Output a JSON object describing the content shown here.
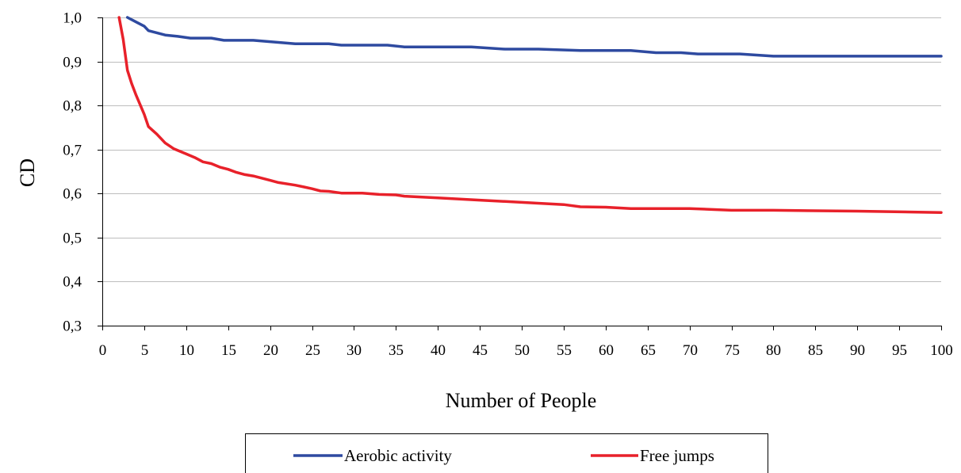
{
  "chart_data": {
    "type": "line",
    "title": "",
    "xlabel": "Number of People",
    "ylabel": "CD",
    "xlim": [
      0,
      100
    ],
    "ylim": [
      0.3,
      1.0
    ],
    "grid": {
      "horizontal": true,
      "vertical": false
    },
    "legend_position": "bottom",
    "x_ticks": [
      "0",
      "5",
      "10",
      "15",
      "20",
      "25",
      "30",
      "35",
      "40",
      "45",
      "50",
      "55",
      "60",
      "65",
      "70",
      "75",
      "80",
      "85",
      "90",
      "95",
      "100"
    ],
    "y_ticks": [
      "0,3",
      "0,4",
      "0,5",
      "0,6",
      "0,7",
      "0,8",
      "0,9",
      "1,0"
    ],
    "x_tick_values": [
      0,
      5,
      10,
      15,
      20,
      25,
      30,
      35,
      40,
      45,
      50,
      55,
      60,
      65,
      70,
      75,
      80,
      85,
      90,
      95,
      100
    ],
    "y_tick_values": [
      0.3,
      0.4,
      0.5,
      0.6,
      0.7,
      0.8,
      0.9,
      1.0
    ],
    "series": [
      {
        "name": "Aerobic activity",
        "color": "#2e4aa0",
        "points": [
          [
            3,
            1.0
          ],
          [
            4,
            0.99
          ],
          [
            5,
            0.98
          ],
          [
            5.5,
            0.97
          ],
          [
            6.5,
            0.965
          ],
          [
            7.5,
            0.96
          ],
          [
            9,
            0.957
          ],
          [
            10.5,
            0.953
          ],
          [
            13,
            0.953
          ],
          [
            14.5,
            0.948
          ],
          [
            18,
            0.948
          ],
          [
            20,
            0.945
          ],
          [
            23,
            0.94
          ],
          [
            27,
            0.94
          ],
          [
            28.5,
            0.937
          ],
          [
            34,
            0.937
          ],
          [
            36,
            0.933
          ],
          [
            44,
            0.933
          ],
          [
            48,
            0.928
          ],
          [
            52,
            0.928
          ],
          [
            57,
            0.925
          ],
          [
            63,
            0.925
          ],
          [
            66,
            0.92
          ],
          [
            69,
            0.92
          ],
          [
            71,
            0.917
          ],
          [
            76,
            0.917
          ],
          [
            80,
            0.912
          ],
          [
            100,
            0.912
          ]
        ]
      },
      {
        "name": "Free jumps",
        "color": "#e8212a",
        "points": [
          [
            2,
            1.0
          ],
          [
            2.5,
            0.95
          ],
          [
            3,
            0.88
          ],
          [
            3.5,
            0.85
          ],
          [
            4,
            0.825
          ],
          [
            5,
            0.78
          ],
          [
            5.5,
            0.752
          ],
          [
            6.5,
            0.735
          ],
          [
            7.5,
            0.715
          ],
          [
            8.5,
            0.702
          ],
          [
            10,
            0.69
          ],
          [
            11,
            0.682
          ],
          [
            12,
            0.672
          ],
          [
            13,
            0.668
          ],
          [
            14,
            0.66
          ],
          [
            15,
            0.655
          ],
          [
            16,
            0.648
          ],
          [
            17,
            0.643
          ],
          [
            18,
            0.64
          ],
          [
            19,
            0.635
          ],
          [
            20,
            0.63
          ],
          [
            21,
            0.625
          ],
          [
            23,
            0.619
          ],
          [
            24,
            0.615
          ],
          [
            25,
            0.611
          ],
          [
            26,
            0.606
          ],
          [
            27,
            0.605
          ],
          [
            28.5,
            0.601
          ],
          [
            31,
            0.601
          ],
          [
            33,
            0.598
          ],
          [
            35,
            0.597
          ],
          [
            36,
            0.594
          ],
          [
            40,
            0.59
          ],
          [
            45,
            0.585
          ],
          [
            50,
            0.58
          ],
          [
            55,
            0.575
          ],
          [
            57,
            0.57
          ],
          [
            60,
            0.569
          ],
          [
            63,
            0.566
          ],
          [
            70,
            0.566
          ],
          [
            75,
            0.562
          ],
          [
            80,
            0.562
          ],
          [
            90,
            0.56
          ],
          [
            100,
            0.557
          ]
        ]
      }
    ]
  }
}
